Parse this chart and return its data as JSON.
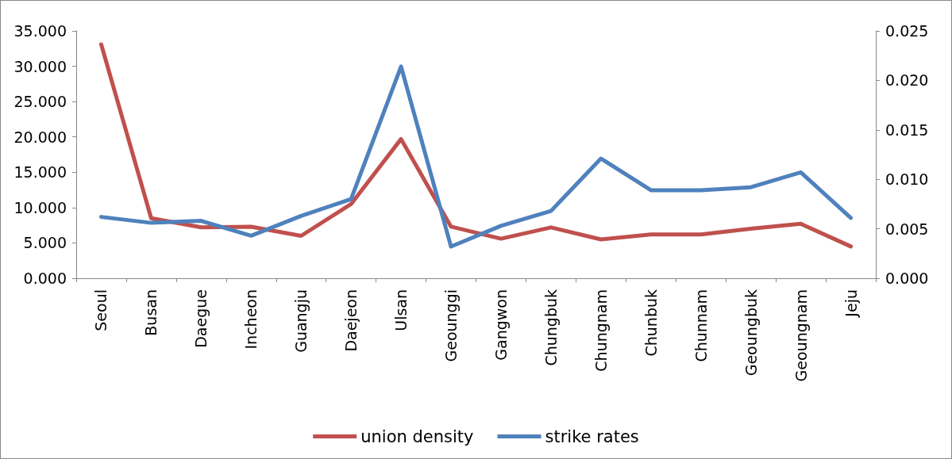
{
  "chart_data": {
    "type": "line",
    "categories": [
      "Seoul",
      "Busan",
      "Daegue",
      "Incheon",
      "Guangju",
      "Daejeon",
      "Ulsan",
      "Geounggi",
      "Gangwon",
      "Chungbuk",
      "Chungnam",
      "Chunbuk",
      "Chunnam",
      "Geoungbuk",
      "Geoungnam",
      "Jeju"
    ],
    "series": [
      {
        "name": "union density",
        "color": "#c0504d",
        "values": [
          33.1,
          8.5,
          7.2,
          7.3,
          6.0,
          10.5,
          19.7,
          7.3,
          5.6,
          7.2,
          5.5,
          6.2,
          6.2,
          7.0,
          7.7,
          4.5
        ]
      },
      {
        "name": "strike rates",
        "color": "#4f81bd",
        "axis": "y2",
        "values": [
          0.0062,
          0.0056,
          0.0058,
          0.0043,
          0.0063,
          0.008,
          0.0214,
          0.0032,
          0.0053,
          0.0068,
          0.0121,
          0.0089,
          0.0089,
          0.0092,
          0.0107,
          0.0061
        ]
      }
    ],
    "ylim": [
      0,
      35
    ],
    "yticks": [
      {
        "value": 0,
        "label": "0.000"
      },
      {
        "value": 5,
        "label": "5.000"
      },
      {
        "value": 10,
        "label": "10.000"
      },
      {
        "value": 15,
        "label": "15.000"
      },
      {
        "value": 20,
        "label": "20.000"
      },
      {
        "value": 25,
        "label": "25.000"
      },
      {
        "value": 30,
        "label": "30.000"
      },
      {
        "value": 35,
        "label": "35.000"
      }
    ],
    "y2lim": [
      0,
      0.025
    ],
    "y2ticks": [
      {
        "value": 0,
        "label": "0.000"
      },
      {
        "value": 0.005,
        "label": "0.005"
      },
      {
        "value": 0.01,
        "label": "0.010"
      },
      {
        "value": 0.015,
        "label": "0.015"
      },
      {
        "value": 0.02,
        "label": "0.020"
      },
      0.025
    ],
    "grid": false,
    "legend": "bottom",
    "marker": "none",
    "line_style": "solid"
  }
}
